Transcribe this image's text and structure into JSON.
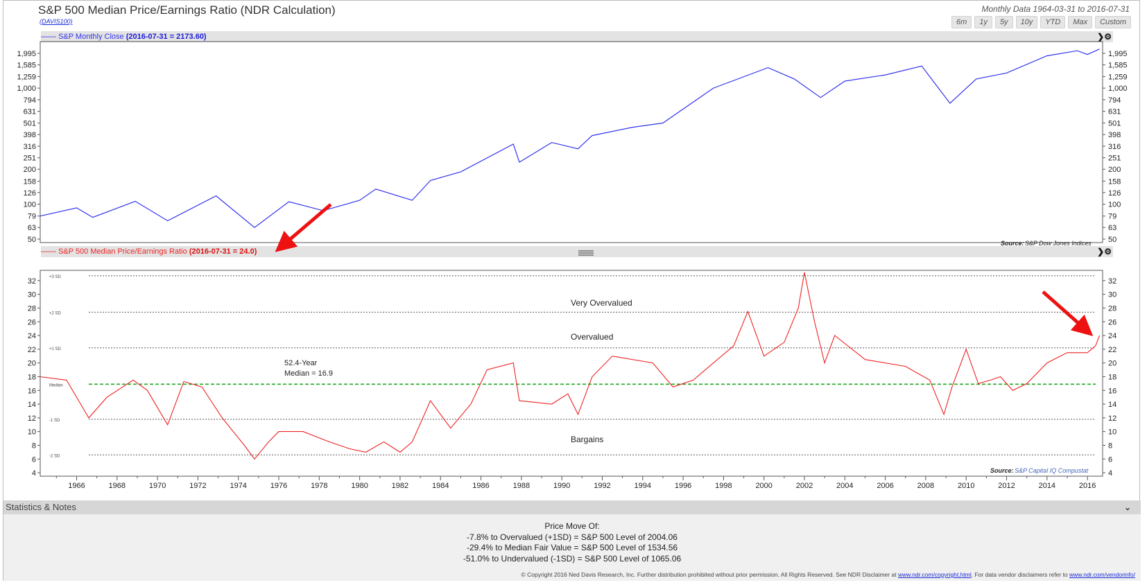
{
  "header": {
    "title": "S&P 500 Median Price/Earnings Ratio (NDR Calculation)",
    "code": "(DAVIS100)",
    "range_text": "Monthly Data 1964-03-31 to 2016-07-31",
    "buttons": [
      "6m",
      "1y",
      "5y",
      "10y",
      "YTD",
      "Max",
      "Custom"
    ]
  },
  "top_panel": {
    "series_label": "S&P Monthly Close",
    "series_value": "(2016-07-31 = 2173.60)",
    "line_color": "#3333ee",
    "source_label": "Source:",
    "source_text": "S&P Dow Jones Indices",
    "y_ticks": [
      "1,995",
      "1,585",
      "1,259",
      "1,000",
      "794",
      "631",
      "501",
      "398",
      "316",
      "251",
      "200",
      "158",
      "126",
      "100",
      "79",
      "63",
      "50"
    ]
  },
  "bottom_panel": {
    "series_label": "S&P 500 Median Price/Earnings Ratio",
    "series_value": "(2016-07-31 = 24.0)",
    "line_color": "#ee2222",
    "source_label": "Source:",
    "source_text": "S&P Capital IQ Compustat",
    "y_ticks": [
      "32",
      "30",
      "28",
      "26",
      "24",
      "22",
      "20",
      "18",
      "16",
      "14",
      "12",
      "10",
      "8",
      "6",
      "4"
    ],
    "band_labels": [
      "+3 SD",
      "+2 SD",
      "+1 SD",
      "Median",
      "-1 SD",
      "-2 SD"
    ],
    "zone_labels": [
      "Very Overvalued",
      "Overvalued",
      "Bargains"
    ],
    "median_note_1": "52.4-Year",
    "median_note_2": "Median = 16.9",
    "median_color": "#22aa22"
  },
  "x_ticks": [
    "1966",
    "1968",
    "1970",
    "1972",
    "1974",
    "1976",
    "1978",
    "1980",
    "1982",
    "1984",
    "1986",
    "1988",
    "1990",
    "1992",
    "1994",
    "1996",
    "1998",
    "2000",
    "2002",
    "2004",
    "2006",
    "2008",
    "2010",
    "2012",
    "2014",
    "2016"
  ],
  "chart_data": [
    {
      "type": "line",
      "title": "S&P Monthly Close",
      "y_scale": "log",
      "ylim": [
        50,
        2350
      ],
      "x": [
        1964.2,
        1966.0,
        1966.8,
        1968.9,
        1970.5,
        1972.9,
        1974.8,
        1976.5,
        1978.2,
        1980.0,
        1980.8,
        1982.6,
        1983.5,
        1985.0,
        1987.6,
        1987.9,
        1989.5,
        1990.8,
        1991.5,
        1993.5,
        1995.0,
        1997.5,
        2000.2,
        2001.5,
        2002.8,
        2004.0,
        2006.0,
        2007.8,
        2009.2,
        2010.5,
        2012.0,
        2014.0,
        2015.5,
        2016.0,
        2016.6
      ],
      "values": [
        79,
        93,
        77,
        106,
        72,
        118,
        63,
        105,
        88,
        108,
        135,
        108,
        160,
        190,
        330,
        230,
        340,
        300,
        390,
        460,
        500,
        1000,
        1500,
        1200,
        830,
        1150,
        1300,
        1550,
        740,
        1200,
        1350,
        1900,
        2100,
        1950,
        2174
      ]
    },
    {
      "type": "line",
      "title": "S&P 500 Median Price/Earnings Ratio",
      "ylim": [
        3.5,
        33.5
      ],
      "reference_lines": {
        "+3 SD": 32.7,
        "+2 SD": 27.4,
        "+1 SD": 22.2,
        "Median": 16.9,
        "-1 SD": 11.8,
        "-2 SD": 6.6
      },
      "x": [
        1964.2,
        1965.5,
        1966.6,
        1967.5,
        1968.8,
        1969.5,
        1970.5,
        1971.3,
        1972.2,
        1973.2,
        1974.3,
        1974.8,
        1975.5,
        1976.0,
        1977.2,
        1978.5,
        1979.5,
        1980.3,
        1981.2,
        1982.0,
        1982.6,
        1983.5,
        1984.5,
        1985.5,
        1986.3,
        1987.6,
        1987.9,
        1989.5,
        1990.3,
        1990.8,
        1991.5,
        1992.5,
        1994.5,
        1995.5,
        1996.5,
        1997.5,
        1998.5,
        1999.2,
        2000.0,
        2001.0,
        2001.7,
        2002.0,
        2002.5,
        2003.0,
        2003.5,
        2005.0,
        2007.0,
        2008.2,
        2008.9,
        2009.3,
        2010.0,
        2010.6,
        2011.2,
        2011.7,
        2012.3,
        2013.0,
        2014.0,
        2015.0,
        2016.0,
        2016.4,
        2016.6
      ],
      "values": [
        18.0,
        17.5,
        12.0,
        15.0,
        17.5,
        16.0,
        11.0,
        17.3,
        16.5,
        12.0,
        8.0,
        6.0,
        8.5,
        10.0,
        10.0,
        8.5,
        7.5,
        7.0,
        8.5,
        7.0,
        8.5,
        14.5,
        10.5,
        14.0,
        19.0,
        20.0,
        14.5,
        14.0,
        15.5,
        12.5,
        18.0,
        21.0,
        20.0,
        16.5,
        17.5,
        20.0,
        22.5,
        27.5,
        21.0,
        23.0,
        28.0,
        33.2,
        26.0,
        20.0,
        24.0,
        20.5,
        19.5,
        17.5,
        12.5,
        16.5,
        22.0,
        17.0,
        17.5,
        18.0,
        16.0,
        17.0,
        20.0,
        21.5,
        21.5,
        22.5,
        24.0
      ]
    }
  ],
  "stats": {
    "header": "Statistics & Notes",
    "notes_title": "Price Move Of:",
    "notes": [
      "-7.8% to Overvalued (+1SD) = S&P 500 Level of 2004.06",
      "-29.4% to Median Fair Value = S&P 500 Level of 1534.56",
      "-51.0% to Undervalued (-1SD) = S&P 500 Level of 1065.06"
    ],
    "copyright": "© Copyright 2016 Ned Davis Research, Inc. Further distribution prohibited without prior permission. All Rights Reserved. See NDR Disclaimer at",
    "copyright_link1": "www.ndr.com/copyright.html",
    "copyright_mid": ". For data vendor disclaimers refer to",
    "copyright_link2": "www.ndr.com/vendorinfo/"
  }
}
